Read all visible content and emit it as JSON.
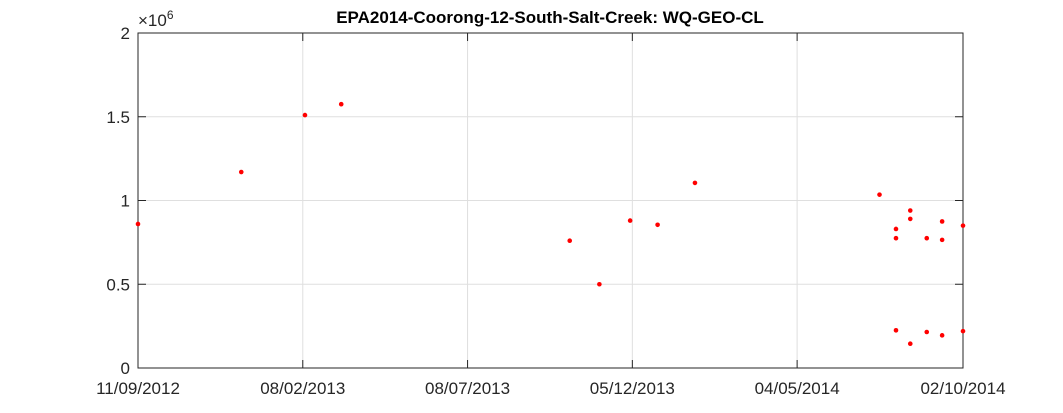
{
  "chart_data": {
    "type": "scatter",
    "title": "EPA2014-Coorong-12-South-Salt-Creek: WQ-GEO-CL",
    "xlabel": "",
    "ylabel": "",
    "y_exponent_label": "×10",
    "y_exponent_power": "6",
    "ylim": [
      0,
      2000000
    ],
    "y_ticks": [
      0,
      500000,
      1000000,
      1500000,
      2000000
    ],
    "y_tick_labels": [
      "0",
      "0.5",
      "1",
      "1.5",
      "2"
    ],
    "xlim": [
      "2012-09-11",
      "2014-10-02"
    ],
    "x_ticks": [
      "2012-09-11",
      "2013-02-08",
      "2013-07-08",
      "2013-12-05",
      "2014-05-04",
      "2014-10-02"
    ],
    "x_tick_labels": [
      "11/09/2012",
      "08/02/2013",
      "08/07/2013",
      "05/12/2013",
      "04/05/2014",
      "02/10/2014"
    ],
    "grid": true,
    "marker_color": "#ff0000",
    "series": [
      {
        "points": [
          {
            "x": "2012-09-11",
            "y": 860000
          },
          {
            "x": "2012-12-14",
            "y": 1170000
          },
          {
            "x": "2013-02-10",
            "y": 1510000
          },
          {
            "x": "2013-03-15",
            "y": 1575000
          },
          {
            "x": "2013-10-09",
            "y": 760000
          },
          {
            "x": "2013-11-05",
            "y": 500000
          },
          {
            "x": "2013-12-03",
            "y": 880000
          },
          {
            "x": "2013-12-28",
            "y": 855000
          },
          {
            "x": "2014-01-31",
            "y": 1105000
          },
          {
            "x": "2014-07-18",
            "y": 1035000
          },
          {
            "x": "2014-08-02",
            "y": 830000
          },
          {
            "x": "2014-08-02",
            "y": 775000
          },
          {
            "x": "2014-08-02",
            "y": 225000
          },
          {
            "x": "2014-08-15",
            "y": 940000
          },
          {
            "x": "2014-08-15",
            "y": 890000
          },
          {
            "x": "2014-08-15",
            "y": 145000
          },
          {
            "x": "2014-08-30",
            "y": 775000
          },
          {
            "x": "2014-08-30",
            "y": 215000
          },
          {
            "x": "2014-09-13",
            "y": 875000
          },
          {
            "x": "2014-09-13",
            "y": 765000
          },
          {
            "x": "2014-09-13",
            "y": 195000
          },
          {
            "x": "2014-10-02",
            "y": 850000
          },
          {
            "x": "2014-10-02",
            "y": 220000
          }
        ]
      }
    ]
  }
}
